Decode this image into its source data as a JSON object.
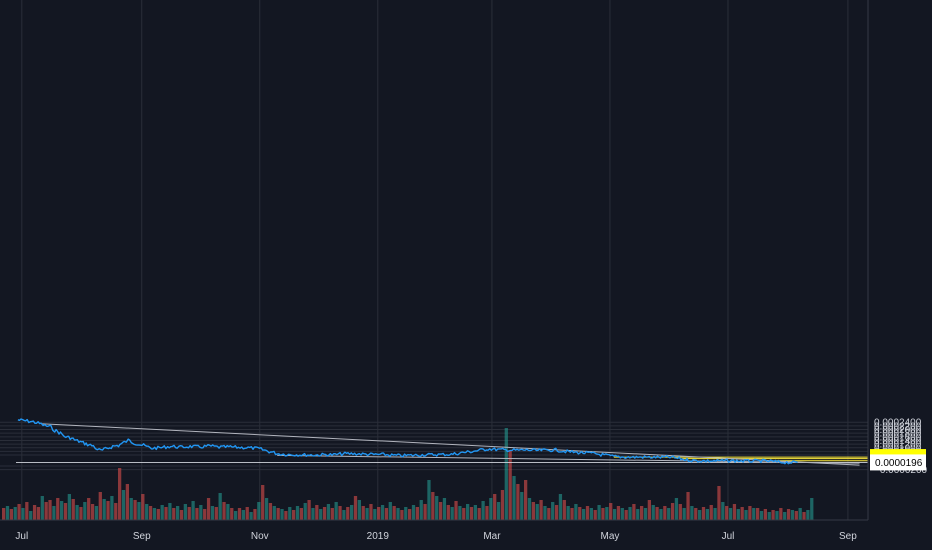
{
  "chart_data": {
    "type": "line",
    "title": "",
    "xlabel": "",
    "ylabel": "",
    "ylim": [
      -2e-05,
      0.00025
    ],
    "grid": true,
    "colors": {
      "background": "#131722",
      "grid": "#2a2e39",
      "price_line": "#2196f3",
      "trendline": "#b2b5be",
      "level_line": "#ffeb3b",
      "volume_up": "#26a69a",
      "volume_down": "#ef5350",
      "axis_text": "#d1d4dc",
      "price_label_highlight": "#ffff00",
      "price_label_white": "#ffffff"
    },
    "y_ticks": [
      "0.0002400",
      "0.0002200",
      "0.0002000",
      "0.0001800",
      "0.0001600",
      "0.0001400",
      "0.0001200",
      "0.0001000",
      "0.0000800",
      "0.0000600",
      "0.0000000",
      "−0.0000200"
    ],
    "y_tick_values": [
      0.00024,
      0.00022,
      0.0002,
      0.00018,
      0.00016,
      0.00014,
      0.00012,
      0.0001,
      8e-05,
      6e-05,
      0.0,
      -2e-05
    ],
    "x_ticks": [
      "Jul",
      "Sep",
      "Nov",
      "2019",
      "Mar",
      "May",
      "Jul",
      "Sep"
    ],
    "x_tick_dates": [
      "2018-07-01",
      "2018-09-01",
      "2018-11-01",
      "2019-01-01",
      "2019-03-01",
      "2019-05-01",
      "2019-07-01",
      "2019-09-01"
    ],
    "price_labels": [
      {
        "text": "0.0000490",
        "value": 4.9e-05,
        "style": "highlight"
      },
      {
        "text": "0.0000404",
        "value": 4.04e-05,
        "style": "highlight"
      },
      {
        "text": "0.0000285",
        "value": 2.85e-05,
        "style": "highlight"
      },
      {
        "text": "0.0000196",
        "value": 1.96e-05,
        "style": "white"
      }
    ],
    "series": [
      {
        "values": [
          [
            "2018-06-29",
            0.000253
          ],
          [
            "2018-07-03",
            0.000248
          ],
          [
            "2018-07-07",
            0.000242
          ],
          [
            "2018-07-11",
            0.00023
          ],
          [
            "2018-07-13",
            0.000221
          ],
          [
            "2018-07-16",
            0.000214
          ],
          [
            "2018-07-18",
            0.000196
          ],
          [
            "2018-07-21",
            0.00018
          ],
          [
            "2018-07-23",
            0.000162
          ],
          [
            "2018-07-26",
            0.000155
          ],
          [
            "2018-07-29",
            0.00014
          ],
          [
            "2018-08-01",
            0.00013
          ],
          [
            "2018-08-04",
            0.000118
          ],
          [
            "2018-08-07",
            0.00011
          ],
          [
            "2018-08-09",
            9.2e-05
          ],
          [
            "2018-08-11",
            8.4e-05
          ],
          [
            "2018-08-14",
            9.6e-05
          ],
          [
            "2018-08-17",
            0.000108
          ],
          [
            "2018-08-20",
            0.000113
          ],
          [
            "2018-08-23",
            0.00013
          ],
          [
            "2018-08-25",
            0.00014
          ],
          [
            "2018-08-29",
            0.000124
          ],
          [
            "2018-09-02",
            0.000112
          ],
          [
            "2018-09-06",
            9.7e-05
          ],
          [
            "2018-09-11",
            0.000101
          ],
          [
            "2018-09-16",
            0.000108
          ],
          [
            "2018-09-21",
            0.000103
          ],
          [
            "2018-09-26",
            0.000107
          ],
          [
            "2018-10-01",
            0.000104
          ],
          [
            "2018-10-06",
            0.00011
          ],
          [
            "2018-10-11",
            0.000103
          ],
          [
            "2018-10-16",
            0.000105
          ],
          [
            "2018-10-21",
            0.000102
          ],
          [
            "2018-10-26",
            0.0001
          ],
          [
            "2018-10-31",
            9.6e-05
          ],
          [
            "2018-11-05",
            8.2e-05
          ],
          [
            "2018-11-10",
            6.8e-05
          ],
          [
            "2018-11-15",
            6.3e-05
          ],
          [
            "2018-11-20",
            6.2e-05
          ],
          [
            "2018-11-25",
            6.1e-05
          ],
          [
            "2018-11-30",
            6e-05
          ],
          [
            "2018-12-05",
            6.3e-05
          ],
          [
            "2018-12-10",
            6.2e-05
          ],
          [
            "2018-12-15",
            6.8e-05
          ],
          [
            "2018-12-20",
            6.7e-05
          ],
          [
            "2018-12-25",
            6.5e-05
          ],
          [
            "2018-12-30",
            6.3e-05
          ],
          [
            "2019-01-04",
            6.3e-05
          ],
          [
            "2019-01-09",
            5.8e-05
          ],
          [
            "2019-01-14",
            5.7e-05
          ],
          [
            "2019-01-19",
            5.9e-05
          ],
          [
            "2019-01-24",
            6.1e-05
          ],
          [
            "2019-01-29",
            6.2e-05
          ],
          [
            "2019-02-03",
            6.3e-05
          ],
          [
            "2019-02-08",
            6.4e-05
          ],
          [
            "2019-02-13",
            7.2e-05
          ],
          [
            "2019-02-18",
            7.9e-05
          ],
          [
            "2019-02-23",
            8.7e-05
          ],
          [
            "2019-02-27",
            9.4e-05
          ],
          [
            "2019-03-04",
            9e-05
          ],
          [
            "2019-03-09",
            8.8e-05
          ],
          [
            "2019-03-14",
            8.6e-05
          ],
          [
            "2019-03-19",
            8.8e-05
          ],
          [
            "2019-03-24",
            8.5e-05
          ],
          [
            "2019-03-29",
            8.7e-05
          ],
          [
            "2019-04-03",
            8.8e-05
          ],
          [
            "2019-04-08",
            8e-05
          ],
          [
            "2019-04-13",
            7.5e-05
          ],
          [
            "2019-04-18",
            7.2e-05
          ],
          [
            "2019-04-23",
            6.8e-05
          ],
          [
            "2019-04-28",
            6e-05
          ],
          [
            "2019-05-03",
            5.2e-05
          ],
          [
            "2019-05-08",
            4.9e-05
          ],
          [
            "2019-05-13",
            4.8e-05
          ],
          [
            "2019-05-18",
            4.9e-05
          ],
          [
            "2019-05-23",
            4.8e-05
          ],
          [
            "2019-05-28",
            4.8e-05
          ],
          [
            "2019-06-01",
            4.9e-05
          ],
          [
            "2019-06-05",
            4.2e-05
          ],
          [
            "2019-06-09",
            3.5e-05
          ],
          [
            "2019-06-13",
            3e-05
          ],
          [
            "2019-06-18",
            2.8e-05
          ],
          [
            "2019-06-23",
            2.8e-05
          ],
          [
            "2019-06-28",
            2.9e-05
          ],
          [
            "2019-07-03",
            2.9e-05
          ],
          [
            "2019-07-08",
            2.8e-05
          ],
          [
            "2019-07-13",
            2.7e-05
          ],
          [
            "2019-07-18",
            2.8e-05
          ],
          [
            "2019-07-23",
            2.6e-05
          ],
          [
            "2019-07-28",
            2.1e-05
          ],
          [
            "2019-08-02",
            1.9e-05
          ],
          [
            "2019-08-06",
            1.96e-05
          ]
        ]
      }
    ],
    "trendlines": [
      {
        "from": [
          "2018-07-11",
          0.000232
        ],
        "to": [
          "2019-09-07",
          4.5e-06
        ]
      },
      {
        "from": [
          "2018-11-10",
          5.8e-05
        ],
        "to": [
          "2019-09-07",
          1.55e-05
        ]
      }
    ],
    "level_lines": [
      {
        "value": 4.9e-05,
        "from_date": "2019-05-03"
      },
      {
        "value": 4.04e-05,
        "from_date": "2019-06-07"
      },
      {
        "value": 2.85e-05,
        "from_date": "2019-07-26"
      },
      {
        "value": 1.96e-05,
        "from_date": "2018-06-28"
      }
    ],
    "volume_bars": [
      [
        12,
        "d"
      ],
      [
        14,
        "u"
      ],
      [
        11,
        "d"
      ],
      [
        13,
        "u"
      ],
      [
        16,
        "d"
      ],
      [
        12,
        "u"
      ],
      [
        18,
        "d"
      ],
      [
        9,
        "u"
      ],
      [
        15,
        "d"
      ],
      [
        13,
        "d"
      ],
      [
        24,
        "u"
      ],
      [
        18,
        "d"
      ],
      [
        20,
        "d"
      ],
      [
        14,
        "u"
      ],
      [
        22,
        "d"
      ],
      [
        19,
        "u"
      ],
      [
        17,
        "d"
      ],
      [
        26,
        "u"
      ],
      [
        21,
        "d"
      ],
      [
        15,
        "u"
      ],
      [
        13,
        "d"
      ],
      [
        18,
        "u"
      ],
      [
        22,
        "d"
      ],
      [
        16,
        "d"
      ],
      [
        14,
        "u"
      ],
      [
        28,
        "d"
      ],
      [
        21,
        "u"
      ],
      [
        19,
        "d"
      ],
      [
        24,
        "u"
      ],
      [
        17,
        "d"
      ],
      [
        52,
        "d"
      ],
      [
        30,
        "u"
      ],
      [
        36,
        "d"
      ],
      [
        22,
        "u"
      ],
      [
        20,
        "d"
      ],
      [
        18,
        "u"
      ],
      [
        26,
        "d"
      ],
      [
        16,
        "u"
      ],
      [
        14,
        "d"
      ],
      [
        12,
        "u"
      ],
      [
        11,
        "d"
      ],
      [
        15,
        "u"
      ],
      [
        13,
        "d"
      ],
      [
        17,
        "u"
      ],
      [
        12,
        "d"
      ],
      [
        14,
        "u"
      ],
      [
        10,
        "d"
      ],
      [
        16,
        "u"
      ],
      [
        13,
        "d"
      ],
      [
        19,
        "u"
      ],
      [
        12,
        "d"
      ],
      [
        15,
        "u"
      ],
      [
        11,
        "d"
      ],
      [
        22,
        "d"
      ],
      [
        14,
        "u"
      ],
      [
        13,
        "d"
      ],
      [
        27,
        "u"
      ],
      [
        18,
        "d"
      ],
      [
        16,
        "u"
      ],
      [
        12,
        "d"
      ],
      [
        9,
        "u"
      ],
      [
        12,
        "d"
      ],
      [
        10,
        "u"
      ],
      [
        13,
        "d"
      ],
      [
        8,
        "u"
      ],
      [
        11,
        "d"
      ],
      [
        18,
        "u"
      ],
      [
        35,
        "d"
      ],
      [
        22,
        "u"
      ],
      [
        17,
        "d"
      ],
      [
        14,
        "u"
      ],
      [
        12,
        "d"
      ],
      [
        11,
        "u"
      ],
      [
        9,
        "d"
      ],
      [
        13,
        "u"
      ],
      [
        10,
        "d"
      ],
      [
        14,
        "u"
      ],
      [
        12,
        "d"
      ],
      [
        17,
        "u"
      ],
      [
        20,
        "d"
      ],
      [
        12,
        "u"
      ],
      [
        15,
        "d"
      ],
      [
        11,
        "u"
      ],
      [
        13,
        "d"
      ],
      [
        16,
        "u"
      ],
      [
        12,
        "d"
      ],
      [
        18,
        "u"
      ],
      [
        14,
        "d"
      ],
      [
        10,
        "u"
      ],
      [
        13,
        "d"
      ],
      [
        15,
        "u"
      ],
      [
        24,
        "d"
      ],
      [
        20,
        "u"
      ],
      [
        14,
        "d"
      ],
      [
        12,
        "u"
      ],
      [
        16,
        "d"
      ],
      [
        11,
        "u"
      ],
      [
        13,
        "d"
      ],
      [
        15,
        "u"
      ],
      [
        12,
        "d"
      ],
      [
        18,
        "u"
      ],
      [
        14,
        "d"
      ],
      [
        12,
        "u"
      ],
      [
        10,
        "d"
      ],
      [
        13,
        "u"
      ],
      [
        11,
        "d"
      ],
      [
        15,
        "u"
      ],
      [
        13,
        "d"
      ],
      [
        20,
        "u"
      ],
      [
        16,
        "d"
      ],
      [
        40,
        "u"
      ],
      [
        28,
        "d"
      ],
      [
        24,
        "u"
      ],
      [
        18,
        "d"
      ],
      [
        22,
        "u"
      ],
      [
        15,
        "d"
      ],
      [
        13,
        "u"
      ],
      [
        19,
        "d"
      ],
      [
        14,
        "u"
      ],
      [
        12,
        "d"
      ],
      [
        16,
        "u"
      ],
      [
        13,
        "d"
      ],
      [
        15,
        "u"
      ],
      [
        12,
        "d"
      ],
      [
        19,
        "u"
      ],
      [
        14,
        "d"
      ],
      [
        22,
        "u"
      ],
      [
        26,
        "d"
      ],
      [
        18,
        "u"
      ],
      [
        30,
        "d"
      ],
      [
        92,
        "u"
      ],
      [
        70,
        "d"
      ],
      [
        44,
        "u"
      ],
      [
        36,
        "d"
      ],
      [
        28,
        "u"
      ],
      [
        40,
        "d"
      ],
      [
        22,
        "u"
      ],
      [
        18,
        "d"
      ],
      [
        16,
        "u"
      ],
      [
        20,
        "d"
      ],
      [
        14,
        "u"
      ],
      [
        12,
        "d"
      ],
      [
        18,
        "u"
      ],
      [
        15,
        "d"
      ],
      [
        26,
        "u"
      ],
      [
        20,
        "d"
      ],
      [
        14,
        "u"
      ],
      [
        12,
        "d"
      ],
      [
        16,
        "u"
      ],
      [
        13,
        "d"
      ],
      [
        11,
        "u"
      ],
      [
        14,
        "d"
      ],
      [
        12,
        "u"
      ],
      [
        10,
        "d"
      ],
      [
        15,
        "u"
      ],
      [
        12,
        "d"
      ],
      [
        13,
        "u"
      ],
      [
        17,
        "d"
      ],
      [
        11,
        "u"
      ],
      [
        14,
        "d"
      ],
      [
        12,
        "u"
      ],
      [
        10,
        "d"
      ],
      [
        13,
        "u"
      ],
      [
        16,
        "d"
      ],
      [
        11,
        "u"
      ],
      [
        14,
        "d"
      ],
      [
        12,
        "u"
      ],
      [
        20,
        "d"
      ],
      [
        15,
        "u"
      ],
      [
        13,
        "d"
      ],
      [
        11,
        "u"
      ],
      [
        14,
        "d"
      ],
      [
        12,
        "u"
      ],
      [
        17,
        "d"
      ],
      [
        22,
        "u"
      ],
      [
        16,
        "d"
      ],
      [
        12,
        "u"
      ],
      [
        28,
        "d"
      ],
      [
        14,
        "u"
      ],
      [
        12,
        "d"
      ],
      [
        10,
        "u"
      ],
      [
        13,
        "d"
      ],
      [
        11,
        "u"
      ],
      [
        15,
        "d"
      ],
      [
        12,
        "u"
      ],
      [
        34,
        "d"
      ],
      [
        18,
        "u"
      ],
      [
        14,
        "d"
      ],
      [
        12,
        "u"
      ],
      [
        16,
        "d"
      ],
      [
        11,
        "u"
      ],
      [
        13,
        "d"
      ],
      [
        10,
        "u"
      ],
      [
        14,
        "d"
      ],
      [
        12,
        "u"
      ],
      [
        12,
        "d"
      ],
      [
        9,
        "u"
      ],
      [
        11,
        "d"
      ],
      [
        8,
        "u"
      ],
      [
        10,
        "d"
      ],
      [
        9,
        "u"
      ],
      [
        12,
        "d"
      ],
      [
        8,
        "u"
      ],
      [
        11,
        "d"
      ],
      [
        10,
        "u"
      ],
      [
        9,
        "d"
      ],
      [
        12,
        "u"
      ],
      [
        8,
        "d"
      ],
      [
        10,
        "u"
      ],
      [
        22,
        "u"
      ]
    ]
  }
}
